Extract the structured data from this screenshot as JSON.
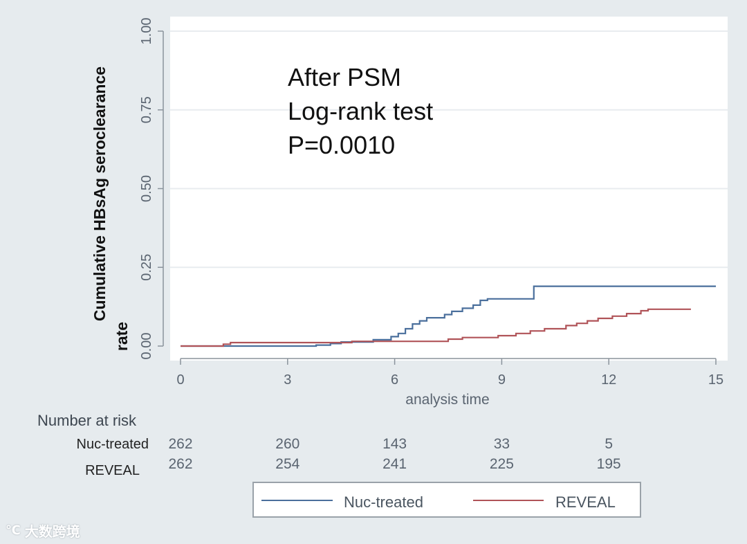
{
  "chart_data": {
    "type": "line",
    "ylabel": [
      "Cumulative HBsAg seroclearance",
      "rate"
    ],
    "xlabel": "analysis time",
    "xlim": [
      0,
      15
    ],
    "ylim": [
      0,
      1
    ],
    "xticks": [
      0,
      3,
      6,
      9,
      12,
      15
    ],
    "yticks": [
      "0.00",
      "0.25",
      "0.50",
      "0.75",
      "1.00"
    ],
    "grid": true,
    "annotations": [
      "After PSM",
      "Log-rank test",
      "P=0.0010"
    ],
    "series": [
      {
        "name": "Nuc-treated",
        "color": "#4a6f9c",
        "points": [
          [
            0,
            0
          ],
          [
            3.8,
            0
          ],
          [
            3.8,
            0.003
          ],
          [
            4.2,
            0.003
          ],
          [
            4.2,
            0.008
          ],
          [
            4.5,
            0.008
          ],
          [
            4.5,
            0.013
          ],
          [
            5.4,
            0.013
          ],
          [
            5.4,
            0.02
          ],
          [
            5.9,
            0.02
          ],
          [
            5.9,
            0.03
          ],
          [
            6.1,
            0.03
          ],
          [
            6.1,
            0.04
          ],
          [
            6.3,
            0.04
          ],
          [
            6.3,
            0.055
          ],
          [
            6.5,
            0.055
          ],
          [
            6.5,
            0.07
          ],
          [
            6.7,
            0.07
          ],
          [
            6.7,
            0.08
          ],
          [
            6.9,
            0.08
          ],
          [
            6.9,
            0.09
          ],
          [
            7.4,
            0.09
          ],
          [
            7.4,
            0.1
          ],
          [
            7.6,
            0.1
          ],
          [
            7.6,
            0.11
          ],
          [
            7.9,
            0.11
          ],
          [
            7.9,
            0.12
          ],
          [
            8.2,
            0.12
          ],
          [
            8.2,
            0.13
          ],
          [
            8.4,
            0.13
          ],
          [
            8.4,
            0.145
          ],
          [
            8.6,
            0.145
          ],
          [
            8.6,
            0.15
          ],
          [
            9.9,
            0.15
          ],
          [
            9.9,
            0.19
          ],
          [
            15,
            0.19
          ]
        ]
      },
      {
        "name": "REVEAL",
        "color": "#b05358",
        "points": [
          [
            0,
            0
          ],
          [
            1.2,
            0
          ],
          [
            1.2,
            0.006
          ],
          [
            1.4,
            0.006
          ],
          [
            1.4,
            0.011
          ],
          [
            4.8,
            0.011
          ],
          [
            4.8,
            0.015
          ],
          [
            7.5,
            0.015
          ],
          [
            7.5,
            0.022
          ],
          [
            7.9,
            0.022
          ],
          [
            7.9,
            0.027
          ],
          [
            8.9,
            0.027
          ],
          [
            8.9,
            0.033
          ],
          [
            9.4,
            0.033
          ],
          [
            9.4,
            0.04
          ],
          [
            9.8,
            0.04
          ],
          [
            9.8,
            0.048
          ],
          [
            10.2,
            0.048
          ],
          [
            10.2,
            0.055
          ],
          [
            10.8,
            0.055
          ],
          [
            10.8,
            0.065
          ],
          [
            11.1,
            0.065
          ],
          [
            11.1,
            0.072
          ],
          [
            11.4,
            0.072
          ],
          [
            11.4,
            0.08
          ],
          [
            11.7,
            0.08
          ],
          [
            11.7,
            0.088
          ],
          [
            12.1,
            0.088
          ],
          [
            12.1,
            0.095
          ],
          [
            12.5,
            0.095
          ],
          [
            12.5,
            0.103
          ],
          [
            12.9,
            0.103
          ],
          [
            12.9,
            0.112
          ],
          [
            13.1,
            0.112
          ],
          [
            13.1,
            0.117
          ],
          [
            14.3,
            0.117
          ]
        ]
      }
    ],
    "risk_table": {
      "title": "Number at risk",
      "rows": [
        {
          "name": "Nuc-treated",
          "values": [
            "262",
            "260",
            "143",
            "33",
            "5"
          ]
        },
        {
          "name": "REVEAL",
          "values": [
            "262",
            "254",
            "241",
            "225",
            "195"
          ]
        }
      ]
    },
    "legend": {
      "position": "bottom",
      "entries": [
        {
          "label": "Nuc-treated",
          "color": "#4a6f9c"
        },
        {
          "label": "REVEAL",
          "color": "#b05358"
        }
      ]
    }
  },
  "watermark": {
    "text": "大数跨境"
  }
}
